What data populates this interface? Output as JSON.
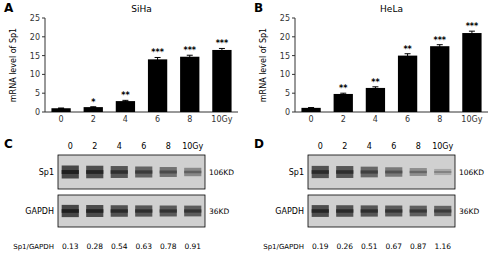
{
  "chart_data": [
    {
      "type": "bar",
      "panel_label": "A",
      "title": "SiHa",
      "categories": [
        "0",
        "2",
        "4",
        "6",
        "8",
        "10Gy"
      ],
      "values": [
        1.0,
        1.3,
        2.9,
        14.0,
        14.7,
        16.5
      ],
      "errors": [
        0.05,
        0.1,
        0.2,
        0.5,
        0.4,
        0.4
      ],
      "significance": [
        null,
        "*",
        "**",
        "***",
        "***",
        "***"
      ],
      "ylabel": "mRNA level of Sp1",
      "color": "#000000",
      "ylim": [
        0,
        25
      ],
      "yticks": [
        0,
        5,
        10,
        15,
        20,
        25
      ]
    },
    {
      "type": "bar",
      "panel_label": "B",
      "title": "HeLa",
      "categories": [
        "0",
        "2",
        "4",
        "6",
        "8",
        "10Gy"
      ],
      "values": [
        1.1,
        4.8,
        6.4,
        15.0,
        17.5,
        21.0
      ],
      "errors": [
        0.08,
        0.2,
        0.3,
        0.5,
        0.4,
        0.5
      ],
      "significance": [
        null,
        "**",
        "**",
        "**",
        "***",
        "***"
      ],
      "ylabel": "mRNA level of Sp1",
      "color": "#000000",
      "ylim": [
        0,
        25
      ],
      "yticks": [
        0,
        5,
        10,
        15,
        20,
        25
      ]
    },
    {
      "type": "blot",
      "panel_label": "C",
      "categories": [
        "0",
        "2",
        "4",
        "6",
        "8",
        "10Gy"
      ],
      "series": [
        {
          "name": "Sp1",
          "kd_label": "106KD",
          "values": [
            0.85,
            0.82,
            0.78,
            0.72,
            0.65,
            0.55
          ]
        },
        {
          "name": "GAPDH",
          "kd_label": "36KD",
          "values": [
            0.85,
            0.83,
            0.8,
            0.78,
            0.76,
            0.75
          ]
        }
      ],
      "ratio_label": "Sp1/GAPDH",
      "ratios": [
        0.13,
        0.28,
        0.54,
        0.63,
        0.78,
        0.91
      ]
    },
    {
      "type": "blot",
      "panel_label": "D",
      "categories": [
        "0",
        "2",
        "4",
        "6",
        "8",
        "10Gy"
      ],
      "series": [
        {
          "name": "Sp1",
          "kd_label": "106KD",
          "values": [
            0.8,
            0.78,
            0.7,
            0.62,
            0.52,
            0.4
          ]
        },
        {
          "name": "GAPDH",
          "kd_label": "36KD",
          "values": [
            0.82,
            0.8,
            0.78,
            0.76,
            0.74,
            0.72
          ]
        }
      ],
      "ratio_label": "Sp1/GAPDH",
      "ratios": [
        0.19,
        0.26,
        0.51,
        0.67,
        0.87,
        1.16
      ]
    }
  ]
}
